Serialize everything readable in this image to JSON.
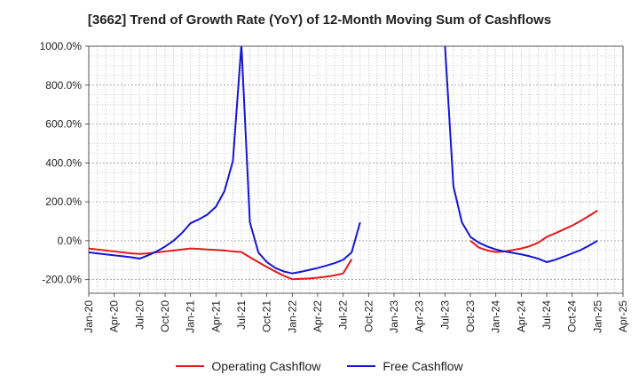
{
  "chart_data": {
    "type": "line",
    "title": "[3662]  Trend of Growth Rate (YoY) of 12-Month Moving Sum of Cashflows",
    "xlabel": "",
    "ylabel": "",
    "ylim": [
      -270,
      1000
    ],
    "yticks": [
      -200,
      0,
      200,
      400,
      600,
      800,
      1000
    ],
    "ytick_labels": [
      "-200.0%",
      "0.0%",
      "200.0%",
      "400.0%",
      "600.0%",
      "800.0%",
      "1000.0%"
    ],
    "x_start": "Jan-20",
    "x_end": "Apr-25",
    "xtick_labels": [
      "Jan-20",
      "Apr-20",
      "Jul-20",
      "Oct-20",
      "Jan-21",
      "Apr-21",
      "Jul-21",
      "Oct-21",
      "Jan-22",
      "Apr-22",
      "Jul-22",
      "Oct-22",
      "Jan-23",
      "Apr-23",
      "Jul-23",
      "Oct-23",
      "Jan-24",
      "Apr-24",
      "Jul-24",
      "Oct-24",
      "Jan-25",
      "Apr-25"
    ],
    "grid": true,
    "legend_position": "bottom",
    "series": [
      {
        "name": "Operating Cashflow",
        "color": "#e31a1c",
        "points": [
          [
            "Jan-20",
            -40
          ],
          [
            "Feb-20",
            -45
          ],
          [
            "Mar-20",
            -50
          ],
          [
            "Apr-20",
            -55
          ],
          [
            "May-20",
            -60
          ],
          [
            "Jun-20",
            -65
          ],
          [
            "Jul-20",
            -68
          ],
          [
            "Aug-20",
            -65
          ],
          [
            "Sep-20",
            -60
          ],
          [
            "Oct-20",
            -55
          ],
          [
            "Nov-20",
            -50
          ],
          [
            "Dec-20",
            -45
          ],
          [
            "Jan-21",
            -40
          ],
          [
            "Feb-21",
            -42
          ],
          [
            "Mar-21",
            -45
          ],
          [
            "Apr-21",
            -47
          ],
          [
            "May-21",
            -50
          ],
          [
            "Jun-21",
            -55
          ],
          [
            "Jul-21",
            -58
          ],
          [
            "Aug-21",
            -85
          ],
          [
            "Sep-21",
            -110
          ],
          [
            "Oct-21",
            -135
          ],
          [
            "Nov-21",
            -158
          ],
          [
            "Dec-21",
            -180
          ],
          [
            "Jan-22",
            -198
          ],
          [
            "Feb-22",
            -196
          ],
          [
            "Mar-22",
            -194
          ],
          [
            "Apr-22",
            -190
          ],
          [
            "May-22",
            -185
          ],
          [
            "Jun-22",
            -178
          ],
          [
            "Jul-22",
            -168
          ],
          [
            "Aug-22",
            -95
          ],
          [
            "Sep-22",
            null
          ],
          [
            "Oct-22",
            null
          ],
          [
            "Nov-22",
            null
          ],
          [
            "Dec-22",
            null
          ],
          [
            "Jan-23",
            null
          ],
          [
            "Feb-23",
            null
          ],
          [
            "Mar-23",
            null
          ],
          [
            "Apr-23",
            null
          ],
          [
            "May-23",
            null
          ],
          [
            "Jun-23",
            null
          ],
          [
            "Jul-23",
            null
          ],
          [
            "Aug-23",
            null
          ],
          [
            "Sep-23",
            null
          ],
          [
            "Oct-23",
            0
          ],
          [
            "Nov-23",
            -35
          ],
          [
            "Dec-23",
            -50
          ],
          [
            "Jan-24",
            -58
          ],
          [
            "Feb-24",
            -55
          ],
          [
            "Mar-24",
            -48
          ],
          [
            "Apr-24",
            -40
          ],
          [
            "May-24",
            -28
          ],
          [
            "Jun-24",
            -10
          ],
          [
            "Jul-24",
            20
          ],
          [
            "Aug-24",
            38
          ],
          [
            "Sep-24",
            58
          ],
          [
            "Oct-24",
            78
          ],
          [
            "Nov-24",
            102
          ],
          [
            "Dec-24",
            128
          ],
          [
            "Jan-25",
            155
          ]
        ]
      },
      {
        "name": "Free Cashflow",
        "color": "#1515d5",
        "points": [
          [
            "Jan-20",
            -60
          ],
          [
            "Feb-20",
            -65
          ],
          [
            "Mar-20",
            -70
          ],
          [
            "Apr-20",
            -75
          ],
          [
            "May-20",
            -80
          ],
          [
            "Jun-20",
            -85
          ],
          [
            "Jul-20",
            -92
          ],
          [
            "Aug-20",
            -75
          ],
          [
            "Sep-20",
            -55
          ],
          [
            "Oct-20",
            -30
          ],
          [
            "Nov-20",
            0
          ],
          [
            "Dec-20",
            40
          ],
          [
            "Jan-21",
            90
          ],
          [
            "Feb-21",
            110
          ],
          [
            "Mar-21",
            135
          ],
          [
            "Apr-21",
            175
          ],
          [
            "May-21",
            255
          ],
          [
            "Jun-21",
            410
          ],
          [
            "Jul-21",
            1010
          ],
          [
            "Aug-21",
            95
          ],
          [
            "Sep-21",
            -60
          ],
          [
            "Oct-21",
            -110
          ],
          [
            "Nov-21",
            -140
          ],
          [
            "Dec-21",
            -158
          ],
          [
            "Jan-22",
            -168
          ],
          [
            "Feb-22",
            -160
          ],
          [
            "Mar-22",
            -150
          ],
          [
            "Apr-22",
            -140
          ],
          [
            "May-22",
            -128
          ],
          [
            "Jun-22",
            -115
          ],
          [
            "Jul-22",
            -98
          ],
          [
            "Aug-22",
            -60
          ],
          [
            "Sep-22",
            95
          ],
          [
            "Oct-22",
            null
          ],
          [
            "Nov-22",
            null
          ],
          [
            "Dec-22",
            null
          ],
          [
            "Jan-23",
            null
          ],
          [
            "Feb-23",
            null
          ],
          [
            "Mar-23",
            null
          ],
          [
            "Apr-23",
            null
          ],
          [
            "May-23",
            null
          ],
          [
            "Jun-23",
            null
          ],
          [
            "Jul-23",
            1010
          ],
          [
            "Aug-23",
            280
          ],
          [
            "Sep-23",
            95
          ],
          [
            "Oct-23",
            20
          ],
          [
            "Nov-23",
            -10
          ],
          [
            "Dec-23",
            -30
          ],
          [
            "Jan-24",
            -45
          ],
          [
            "Feb-24",
            -55
          ],
          [
            "Mar-24",
            -62
          ],
          [
            "Apr-24",
            -70
          ],
          [
            "May-24",
            -80
          ],
          [
            "Jun-24",
            -92
          ],
          [
            "Jul-24",
            -110
          ],
          [
            "Aug-24",
            -98
          ],
          [
            "Sep-24",
            -82
          ],
          [
            "Oct-24",
            -65
          ],
          [
            "Nov-24",
            -48
          ],
          [
            "Dec-24",
            -25
          ],
          [
            "Jan-25",
            0
          ]
        ]
      }
    ]
  }
}
